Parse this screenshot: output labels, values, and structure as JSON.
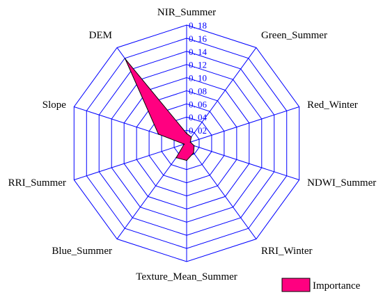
{
  "chart_data": {
    "type": "radar",
    "categories": [
      "NIR_Summer",
      "Green_Summer",
      "Red_Winter",
      "NDWI_Summer",
      "RRI_Winter",
      "Texture_Mean_Summer",
      "Blue_Summer",
      "RRI_Summer",
      "Slope",
      "DEM"
    ],
    "series": [
      {
        "name": "Importance",
        "values": [
          0.015,
          0.012,
          0.006,
          0.012,
          0.018,
          0.026,
          0.027,
          0.004,
          0.045,
          0.159
        ]
      }
    ],
    "rlim": [
      0,
      0.18
    ],
    "ticks": [
      0.02,
      0.04,
      0.06,
      0.08,
      0.1,
      0.12,
      0.14,
      0.16,
      0.18
    ],
    "tick_labels": [
      "0. 02",
      "0. 04",
      "0. 06",
      "0. 08",
      "0. 10",
      "0. 12",
      "0. 14",
      "0. 16",
      "0. 18"
    ],
    "grid": true,
    "legend": "bottom-right",
    "colors": {
      "grid": "#0000ff",
      "fill": "#ff0080",
      "outline": "#000000",
      "tick_text": "#0000ff"
    }
  }
}
